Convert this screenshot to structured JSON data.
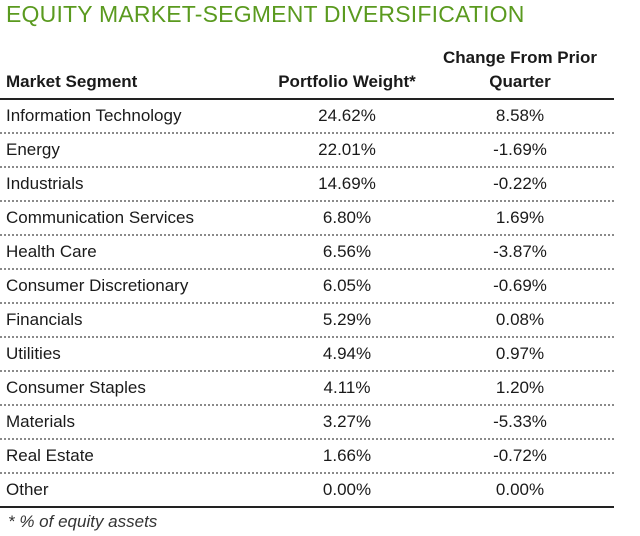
{
  "title": "EQUITY MARKET-SEGMENT DIVERSIFICATION",
  "columns": {
    "segment": "Market Segment",
    "weight": "Portfolio Weight*",
    "change": "Change From Prior Quarter"
  },
  "rows": [
    {
      "segment": "Information Technology",
      "weight": "24.62%",
      "change": "8.58%"
    },
    {
      "segment": "Energy",
      "weight": "22.01%",
      "change": "-1.69%"
    },
    {
      "segment": "Industrials",
      "weight": "14.69%",
      "change": "-0.22%"
    },
    {
      "segment": "Communication Services",
      "weight": "6.80%",
      "change": "1.69%"
    },
    {
      "segment": "Health Care",
      "weight": "6.56%",
      "change": "-3.87%"
    },
    {
      "segment": "Consumer Discretionary",
      "weight": "6.05%",
      "change": "-0.69%"
    },
    {
      "segment": "Financials",
      "weight": "5.29%",
      "change": "0.08%"
    },
    {
      "segment": "Utilities",
      "weight": "4.94%",
      "change": "0.97%"
    },
    {
      "segment": "Consumer Staples",
      "weight": "4.11%",
      "change": "1.20%"
    },
    {
      "segment": "Materials",
      "weight": "3.27%",
      "change": "-5.33%"
    },
    {
      "segment": "Real Estate",
      "weight": "1.66%",
      "change": "-0.72%"
    },
    {
      "segment": "Other",
      "weight": "0.00%",
      "change": "0.00%"
    }
  ],
  "footnote": "* % of equity assets",
  "colors": {
    "title": "#5a9a1f"
  }
}
